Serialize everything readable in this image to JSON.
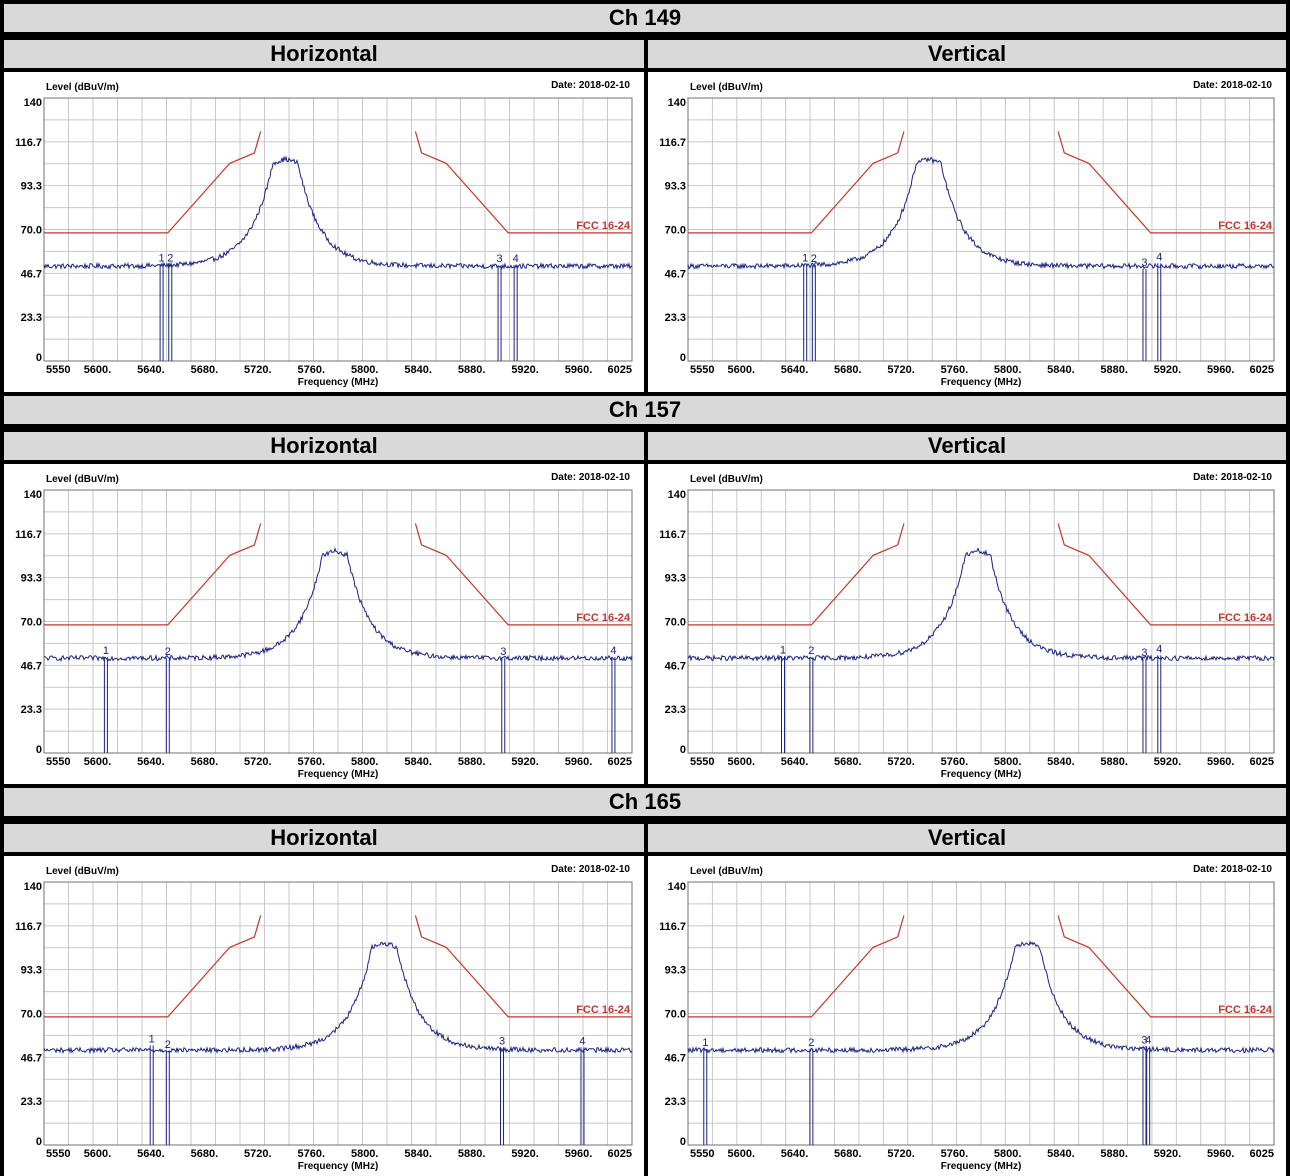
{
  "chart_data": [
    {
      "type": "line",
      "section": "Ch 149",
      "title": "Horizontal",
      "ylabel": "Level (dBuV/m)",
      "xlabel": "Frequency (MHz)",
      "date": "Date: 2018-02-10",
      "limit_label": "FCC 16-24",
      "xlim": [
        5550,
        6025
      ],
      "ylim": [
        0,
        140
      ],
      "yticks": [
        "0",
        "23.3",
        "46.7",
        "70.0",
        "93.3",
        "116.7",
        "140"
      ],
      "xticks": [
        "5550",
        "5600.",
        "5640.",
        "5680.",
        "5720.",
        "5760.",
        "5800.",
        "5840.",
        "5880.",
        "5920.",
        "5960.",
        "6025"
      ],
      "limit_line": {
        "x": [
          5550,
          5650,
          5700,
          5720,
          5725,
          5850,
          5855,
          5875,
          5925,
          6025
        ],
        "y": [
          68.2,
          68.2,
          105.2,
          110.8,
          122.2,
          122.2,
          110.8,
          105.2,
          68.2,
          68.2
        ]
      },
      "signal": {
        "center": 5745,
        "peak": 107.5,
        "noise": 50.5,
        "half_width": 10
      },
      "markers": [
        {
          "label": "1",
          "x": 5645,
          "y": 51.5
        },
        {
          "label": "2",
          "x": 5652,
          "y": 51.5
        },
        {
          "label": "3",
          "x": 5918,
          "y": 51.0
        },
        {
          "label": "4",
          "x": 5931,
          "y": 51.0
        }
      ]
    },
    {
      "type": "line",
      "section": "Ch 149",
      "title": "Vertical",
      "ylabel": "Level (dBuV/m)",
      "xlabel": "Frequency (MHz)",
      "date": "Date: 2018-02-10",
      "limit_label": "FCC 16-24",
      "xlim": [
        5550,
        6025
      ],
      "ylim": [
        0,
        140
      ],
      "yticks": [
        "0",
        "23.3",
        "46.7",
        "70.0",
        "93.3",
        "116.7",
        "140"
      ],
      "xticks": [
        "5550",
        "5600.",
        "5640.",
        "5680.",
        "5720.",
        "5760.",
        "5800.",
        "5840.",
        "5880.",
        "5920.",
        "5960.",
        "6025"
      ],
      "limit_line": {
        "x": [
          5550,
          5650,
          5700,
          5720,
          5725,
          5850,
          5855,
          5875,
          5925,
          6025
        ],
        "y": [
          68.2,
          68.2,
          105.2,
          110.8,
          122.2,
          122.2,
          110.8,
          105.2,
          68.2,
          68.2
        ]
      },
      "signal": {
        "center": 5745,
        "peak": 107.5,
        "noise": 50.5,
        "half_width": 10
      },
      "markers": [
        {
          "label": "1",
          "x": 5645,
          "y": 51.5
        },
        {
          "label": "2",
          "x": 5652,
          "y": 51.0
        },
        {
          "label": "3",
          "x": 5920,
          "y": 49.0
        },
        {
          "label": "4",
          "x": 5932,
          "y": 52.0
        }
      ]
    },
    {
      "type": "line",
      "section": "Ch 157",
      "title": "Horizontal",
      "ylabel": "Level (dBuV/m)",
      "xlabel": "Frequency (MHz)",
      "date": "Date: 2018-02-10",
      "limit_label": "FCC 16-24",
      "xlim": [
        5550,
        6025
      ],
      "ylim": [
        0,
        140
      ],
      "yticks": [
        "0",
        "23.3",
        "46.7",
        "70.0",
        "93.3",
        "116.7",
        "140"
      ],
      "xticks": [
        "5550",
        "5600.",
        "5640.",
        "5680.",
        "5720.",
        "5760.",
        "5800.",
        "5840.",
        "5880.",
        "5920.",
        "5960.",
        "6025"
      ],
      "limit_line": {
        "x": [
          5550,
          5650,
          5700,
          5720,
          5725,
          5850,
          5855,
          5875,
          5925,
          6025
        ],
        "y": [
          68.2,
          68.2,
          105.2,
          110.8,
          122.2,
          122.2,
          110.8,
          105.2,
          68.2,
          68.2
        ]
      },
      "signal": {
        "center": 5785,
        "peak": 107.5,
        "noise": 50.5,
        "half_width": 10
      },
      "markers": [
        {
          "label": "1",
          "x": 5600,
          "y": 51.0
        },
        {
          "label": "2",
          "x": 5650,
          "y": 50.5
        },
        {
          "label": "3",
          "x": 5921,
          "y": 50.5
        },
        {
          "label": "4",
          "x": 6010,
          "y": 51.0
        }
      ]
    },
    {
      "type": "line",
      "section": "Ch 157",
      "title": "Vertical",
      "ylabel": "Level (dBuV/m)",
      "xlabel": "Frequency (MHz)",
      "date": "Date: 2018-02-10",
      "limit_label": "FCC 16-24",
      "xlim": [
        5550,
        6025
      ],
      "ylim": [
        0,
        140
      ],
      "yticks": [
        "0",
        "23.3",
        "46.7",
        "70.0",
        "93.3",
        "116.7",
        "140"
      ],
      "xticks": [
        "5550",
        "5600.",
        "5640.",
        "5680.",
        "5720.",
        "5760.",
        "5800.",
        "5840.",
        "5880.",
        "5920.",
        "5960.",
        "6025"
      ],
      "limit_line": {
        "x": [
          5550,
          5650,
          5700,
          5720,
          5725,
          5850,
          5855,
          5875,
          5925,
          6025
        ],
        "y": [
          68.2,
          68.2,
          105.2,
          110.8,
          122.2,
          122.2,
          110.8,
          105.2,
          68.2,
          68.2
        ]
      },
      "signal": {
        "center": 5785,
        "peak": 107.5,
        "noise": 50.5,
        "half_width": 10
      },
      "markers": [
        {
          "label": "1",
          "x": 5627,
          "y": 51.5
        },
        {
          "label": "2",
          "x": 5650,
          "y": 51.0
        },
        {
          "label": "3",
          "x": 5920,
          "y": 50.0
        },
        {
          "label": "4",
          "x": 5932,
          "y": 52.0
        }
      ]
    },
    {
      "type": "line",
      "section": "Ch 165",
      "title": "Horizontal",
      "ylabel": "Level (dBuV/m)",
      "xlabel": "Frequency (MHz)",
      "date": "Date: 2018-02-10",
      "limit_label": "FCC 16-24",
      "xlim": [
        5550,
        6025
      ],
      "ylim": [
        0,
        140
      ],
      "yticks": [
        "0",
        "23.3",
        "46.7",
        "70.0",
        "93.3",
        "116.7",
        "140"
      ],
      "xticks": [
        "5550",
        "5600.",
        "5640.",
        "5680.",
        "5720.",
        "5760.",
        "5800.",
        "5840.",
        "5880.",
        "5920.",
        "5960.",
        "6025"
      ],
      "limit_line": {
        "x": [
          5550,
          5650,
          5700,
          5720,
          5725,
          5850,
          5855,
          5875,
          5925,
          6025
        ],
        "y": [
          68.2,
          68.2,
          105.2,
          110.8,
          122.2,
          122.2,
          110.8,
          105.2,
          68.2,
          68.2
        ]
      },
      "signal": {
        "center": 5825,
        "peak": 107.5,
        "noise": 50.5,
        "half_width": 10
      },
      "markers": [
        {
          "label": "1",
          "x": 5637,
          "y": 53.0
        },
        {
          "label": "2",
          "x": 5650,
          "y": 50.0
        },
        {
          "label": "3",
          "x": 5920,
          "y": 52.0
        },
        {
          "label": "4",
          "x": 5985,
          "y": 52.0
        }
      ]
    },
    {
      "type": "line",
      "section": "Ch 165",
      "title": "Vertical",
      "ylabel": "Level (dBuV/m)",
      "xlabel": "Frequency (MHz)",
      "date": "Date: 2018-02-10",
      "limit_label": "FCC 16-24",
      "xlim": [
        5550,
        6025
      ],
      "ylim": [
        0,
        140
      ],
      "yticks": [
        "0",
        "23.3",
        "46.7",
        "70.0",
        "93.3",
        "116.7",
        "140"
      ],
      "xticks": [
        "5550",
        "5600.",
        "5640.",
        "5680.",
        "5720.",
        "5760.",
        "5800.",
        "5840.",
        "5880.",
        "5920.",
        "5960.",
        "6025"
      ],
      "limit_line": {
        "x": [
          5550,
          5650,
          5700,
          5720,
          5725,
          5850,
          5855,
          5875,
          5925,
          6025
        ],
        "y": [
          68.2,
          68.2,
          105.2,
          110.8,
          122.2,
          122.2,
          110.8,
          105.2,
          68.2,
          68.2
        ]
      },
      "signal": {
        "center": 5825,
        "peak": 107.5,
        "noise": 50.5,
        "half_width": 10
      },
      "markers": [
        {
          "label": "1",
          "x": 5564,
          "y": 51.0
        },
        {
          "label": "2",
          "x": 5650,
          "y": 51.0
        },
        {
          "label": "3",
          "x": 5920,
          "y": 52.5
        },
        {
          "label": "4",
          "x": 5923,
          "y": 52.5
        }
      ]
    }
  ]
}
